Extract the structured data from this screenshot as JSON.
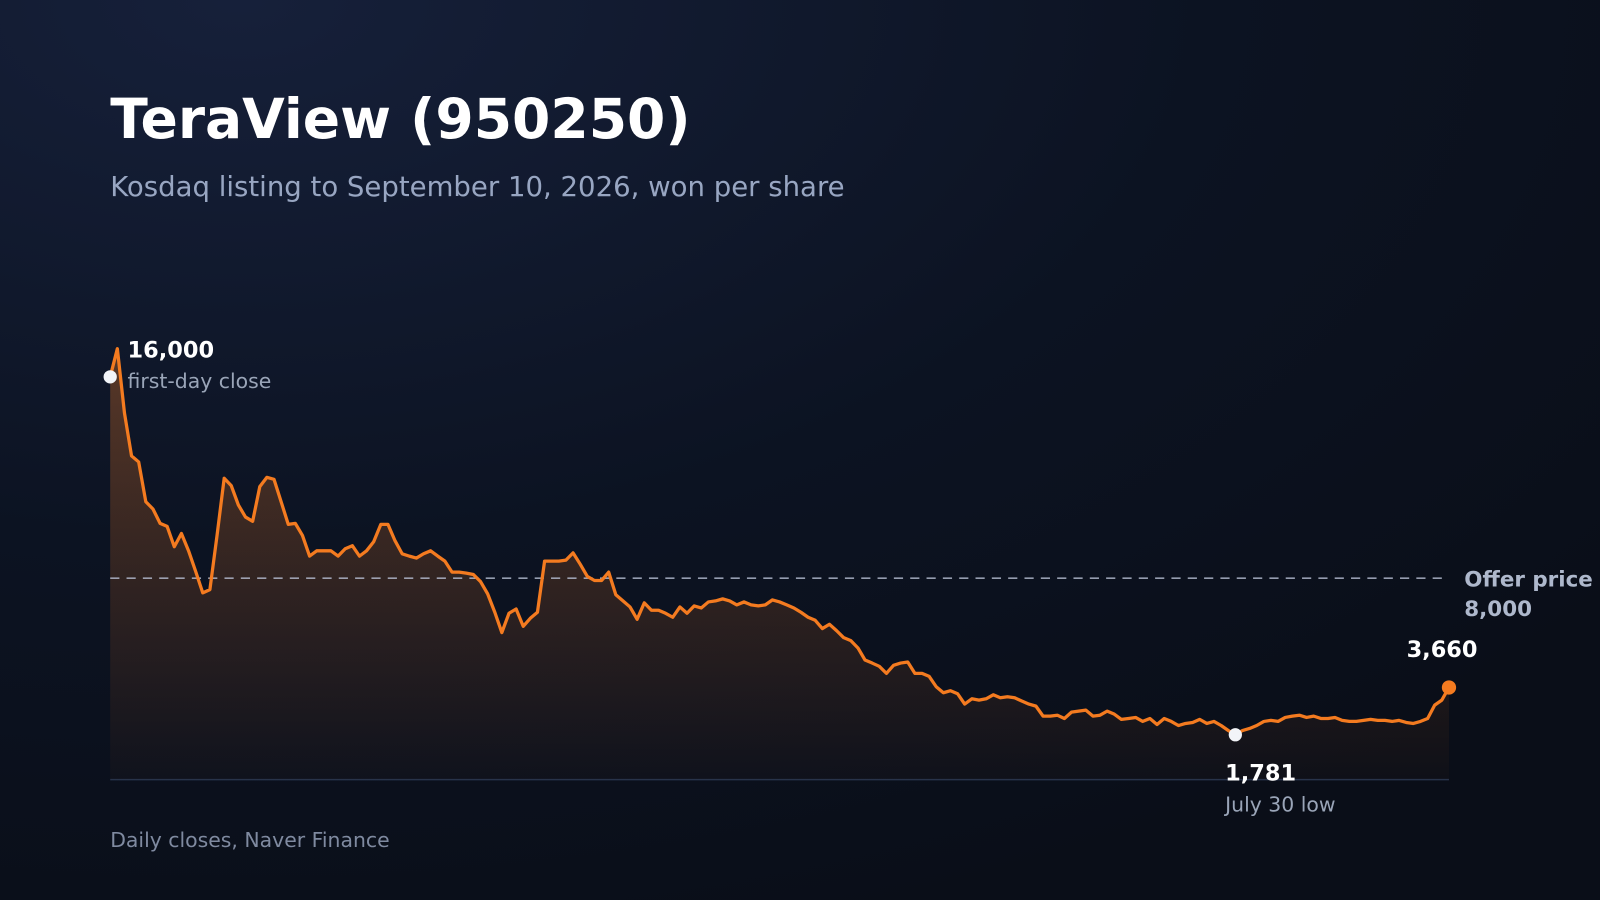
{
  "chart_data": {
    "type": "line",
    "title": "TeraView (950250)",
    "subtitle": "Kosdaq listing to September 10, 2026, won per share",
    "source": "Daily closes, Naver Finance",
    "color": "#f47b20",
    "ylim": [
      0,
      18000
    ],
    "reference_line": {
      "label": "Offer price",
      "value": 8000,
      "value_label": "8,000"
    },
    "annotations": [
      {
        "value": 16000,
        "value_label": "16,000",
        "text": "first-day close"
      },
      {
        "value": 1781,
        "value_label": "1,781",
        "text": "July 30 low"
      },
      {
        "value": 3660,
        "value_label": "3,660"
      }
    ],
    "values": [
      16000,
      17120,
      14560,
      12860,
      12620,
      11040,
      10750,
      10180,
      10060,
      9250,
      9780,
      9090,
      8280,
      7420,
      7550,
      9700,
      11970,
      11680,
      10910,
      10430,
      10260,
      11640,
      12010,
      11930,
      11040,
      10140,
      10180,
      9700,
      8880,
      9090,
      9090,
      9090,
      8880,
      9170,
      9290,
      8880,
      9090,
      9450,
      10140,
      10140,
      9490,
      8970,
      8880,
      8800,
      8970,
      9090,
      8880,
      8680,
      8240,
      8240,
      8200,
      8150,
      7870,
      7380,
      6650,
      5840,
      6610,
      6780,
      6090,
      6410,
      6650,
      8680,
      8680,
      8680,
      8720,
      9010,
      8560,
      8070,
      7910,
      7910,
      8240,
      7340,
      7100,
      6860,
      6370,
      7020,
      6730,
      6730,
      6610,
      6450,
      6860,
      6610,
      6900,
      6820,
      7060,
      7100,
      7180,
      7100,
      6940,
      7060,
      6940,
      6900,
      6940,
      7140,
      7060,
      6940,
      6820,
      6650,
      6450,
      6330,
      6000,
      6170,
      5920,
      5640,
      5520,
      5230,
      4750,
      4630,
      4500,
      4220,
      4540,
      4630,
      4670,
      4220,
      4220,
      4100,
      3690,
      3450,
      3530,
      3410,
      3000,
      3210,
      3160,
      3210,
      3370,
      3250,
      3290,
      3250,
      3120,
      3000,
      2920,
      2520,
      2520,
      2560,
      2430,
      2680,
      2720,
      2760,
      2520,
      2560,
      2720,
      2600,
      2390,
      2430,
      2470,
      2310,
      2430,
      2190,
      2430,
      2310,
      2150,
      2230,
      2270,
      2390,
      2230,
      2310,
      2150,
      1950,
      1781,
      1950,
      2030,
      2150,
      2310,
      2350,
      2310,
      2470,
      2520,
      2560,
      2470,
      2520,
      2430,
      2430,
      2470,
      2350,
      2310,
      2310,
      2350,
      2390,
      2350,
      2350,
      2310,
      2350,
      2270,
      2230,
      2310,
      2430,
      2960,
      3160,
      3660
    ]
  }
}
